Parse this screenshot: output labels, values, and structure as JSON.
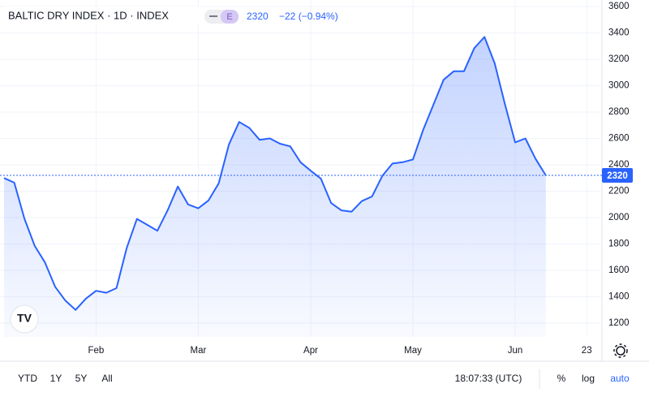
{
  "chart_data": {
    "type": "area",
    "title": "BALTIC DRY INDEX · 1D · INDEX",
    "badge": "E",
    "change": "−22 (−0.94%)",
    "categories": [
      null,
      null,
      null,
      null,
      null,
      null,
      null,
      null,
      null,
      "Feb",
      null,
      null,
      null,
      null,
      null,
      null,
      null,
      null,
      null,
      "Mar",
      null,
      null,
      null,
      null,
      null,
      null,
      null,
      null,
      null,
      null,
      "Apr",
      null,
      null,
      null,
      null,
      null,
      null,
      null,
      null,
      null,
      "May",
      null,
      null,
      null,
      null,
      null,
      null,
      null,
      null,
      null,
      "Jun",
      null,
      null,
      null,
      null,
      null,
      null,
      "23"
    ],
    "series": [
      {
        "name": "BALTIC DRY INDEX",
        "color": "#2962ff",
        "values": [
          2300,
          2265,
          1990,
          1785,
          1660,
          1475,
          1370,
          1300,
          1385,
          1445,
          1430,
          1465,
          1770,
          1990,
          1945,
          1900,
          2055,
          2235,
          2100,
          2070,
          2130,
          2260,
          2555,
          2725,
          2680,
          2590,
          2600,
          2560,
          2540,
          2420,
          2355,
          2295,
          2110,
          2055,
          2045,
          2125,
          2160,
          2315,
          2410,
          2420,
          2440,
          2665,
          2855,
          3045,
          3110,
          3110,
          3285,
          3370,
          3170,
          2860,
          2570,
          2600,
          2445,
          2320,
          null,
          null,
          null,
          null
        ]
      }
    ],
    "ylim": [
      1095,
      3650
    ],
    "yticks": [
      1200,
      1400,
      1600,
      1800,
      2000,
      2200,
      2400,
      2600,
      2800,
      3000,
      3200,
      3400,
      3600
    ],
    "grid": true
  },
  "toolbar": {
    "ranges": [
      "YTD",
      "1Y",
      "5Y",
      "All"
    ],
    "time": "18:07:33 (UTC)",
    "options": [
      "%",
      "log",
      "auto"
    ]
  }
}
